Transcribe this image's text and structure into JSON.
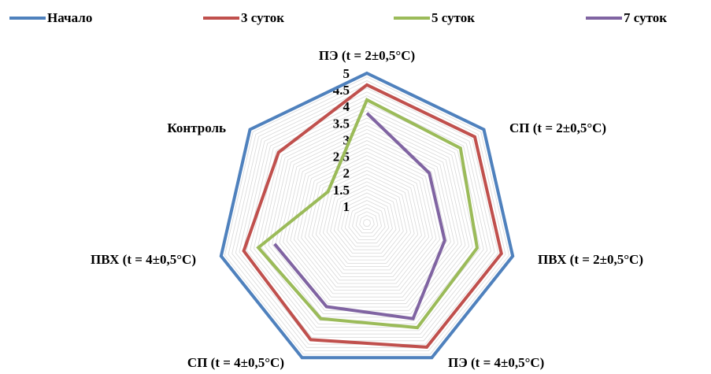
{
  "chart_data": {
    "type": "radar",
    "title": "",
    "categories": [
      "ПЭ (t = 2±0,5°C)",
      "СП (t = 2±0,5°C)",
      "ПВХ (t = 2±0,5°C)",
      "ПЭ (t = 4±0,5°C)",
      "СП (t = 4±0,5°C)",
      "ПВХ (t = 4±0,5°C)",
      "Контроль"
    ],
    "ticks": [
      "1",
      "1.5",
      "2",
      "2.5",
      "3",
      "3.5",
      "4",
      "4.5",
      "5"
    ],
    "range": [
      0.5,
      5
    ],
    "legend_position": "top",
    "grid": true,
    "series": [
      {
        "name": "Начало",
        "color": "#4f81bd",
        "values": [
          5,
          5,
          5,
          5,
          5,
          5,
          5
        ]
      },
      {
        "name": "3 суток",
        "color": "#c0504d",
        "values": [
          4.65,
          4.65,
          4.65,
          4.65,
          4.4,
          4.3,
          3.9
        ]
      },
      {
        "name": "5 суток",
        "color": "#9bbb59",
        "values": [
          4.2,
          4.1,
          3.9,
          4.0,
          3.7,
          3.85,
          2.0
        ]
      },
      {
        "name": "7 суток",
        "color": "#8064a2",
        "values": [
          3.8,
          2.9,
          2.9,
          3.7,
          3.3,
          3.35,
          null
        ]
      }
    ]
  }
}
